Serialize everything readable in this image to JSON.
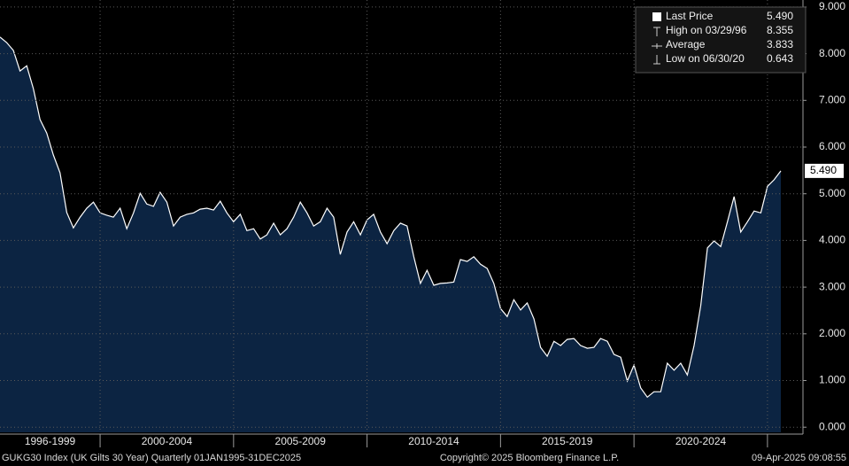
{
  "chart_data": {
    "type": "area",
    "footer_left": "GUKG30 Index (UK Gilts 30 Year)  Quarterly 01JAN1995-31DEC2025",
    "footer_center": "Copyright© 2025 Bloomberg Finance L.P.",
    "footer_right": "09-Apr-2025 09:08:55",
    "x": [
      1996.25,
      1996.5,
      1996.75,
      1997,
      1997.25,
      1997.5,
      1997.75,
      1998,
      1998.25,
      1998.5,
      1998.75,
      1999,
      1999.25,
      1999.5,
      1999.75,
      2000,
      2000.25,
      2000.5,
      2000.75,
      2001,
      2001.25,
      2001.5,
      2001.75,
      2002,
      2002.25,
      2002.5,
      2002.75,
      2003,
      2003.25,
      2003.5,
      2003.75,
      2004,
      2004.25,
      2004.5,
      2004.75,
      2005,
      2005.25,
      2005.5,
      2005.75,
      2006,
      2006.25,
      2006.5,
      2006.75,
      2007,
      2007.25,
      2007.5,
      2007.75,
      2008,
      2008.25,
      2008.5,
      2008.75,
      2009,
      2009.25,
      2009.5,
      2009.75,
      2010,
      2010.25,
      2010.5,
      2010.75,
      2011,
      2011.25,
      2011.5,
      2011.75,
      2012,
      2012.25,
      2012.5,
      2012.75,
      2013,
      2013.25,
      2013.5,
      2013.75,
      2014,
      2014.25,
      2014.5,
      2014.75,
      2015,
      2015.25,
      2015.5,
      2015.75,
      2016,
      2016.25,
      2016.5,
      2016.75,
      2017,
      2017.25,
      2017.5,
      2017.75,
      2018,
      2018.25,
      2018.5,
      2018.75,
      2019,
      2019.25,
      2019.5,
      2019.75,
      2020,
      2020.25,
      2020.5,
      2020.75,
      2021,
      2021.25,
      2021.5,
      2021.75,
      2022,
      2022.25,
      2022.5,
      2022.75,
      2023,
      2023.25,
      2023.5,
      2023.75,
      2024,
      2024.25,
      2024.5,
      2024.75,
      2025,
      2025.25,
      2025.5
    ],
    "series": [
      {
        "name": "Last Price",
        "color": "#ffffff",
        "fill": "#0c2442",
        "values": [
          8.355,
          8.24,
          8.07,
          7.63,
          7.74,
          7.25,
          6.59,
          6.3,
          5.83,
          5.45,
          4.6,
          4.27,
          4.5,
          4.69,
          4.82,
          4.59,
          4.54,
          4.5,
          4.69,
          4.25,
          4.59,
          5.01,
          4.78,
          4.73,
          5.03,
          4.82,
          4.31,
          4.5,
          4.56,
          4.59,
          4.67,
          4.69,
          4.65,
          4.84,
          4.59,
          4.4,
          4.56,
          4.21,
          4.25,
          4.03,
          4.12,
          4.37,
          4.12,
          4.25,
          4.5,
          4.82,
          4.59,
          4.31,
          4.4,
          4.69,
          4.5,
          3.7,
          4.18,
          4.4,
          4.12,
          4.44,
          4.56,
          4.18,
          3.93,
          4.21,
          4.37,
          4.31,
          3.65,
          3.08,
          3.36,
          3.04,
          3.08,
          3.09,
          3.11,
          3.59,
          3.55,
          3.65,
          3.49,
          3.4,
          3.08,
          2.54,
          2.37,
          2.73,
          2.51,
          2.66,
          2.32,
          1.71,
          1.52,
          1.84,
          1.75,
          1.88,
          1.9,
          1.75,
          1.69,
          1.71,
          1.9,
          1.84,
          1.56,
          1.5,
          0.99,
          1.33,
          0.84,
          0.643,
          0.76,
          0.76,
          1.37,
          1.22,
          1.37,
          1.12,
          1.75,
          2.6,
          3.84,
          3.99,
          3.87,
          4.4,
          4.94,
          4.18,
          4.4,
          4.63,
          4.59,
          5.16,
          5.3,
          5.49
        ]
      }
    ],
    "legend": [
      {
        "name": "Last Price",
        "value": 5.49,
        "label": "5.490"
      },
      {
        "name": "High on 03/29/96",
        "value": 8.355,
        "label": "8.355"
      },
      {
        "name": "Average",
        "value": 3.833,
        "label": "3.833"
      },
      {
        "name": "Low on 06/30/20",
        "value": 0.643,
        "label": "0.643"
      }
    ],
    "xlim": [
      1996.25,
      2026.33
    ],
    "xdividers": [
      2000,
      2005,
      2010,
      2015,
      2020,
      2025
    ],
    "xticks": [
      {
        "value": 1998.125,
        "label": "1996-1999"
      },
      {
        "value": 2002.5,
        "label": "2000-2004"
      },
      {
        "value": 2007.5,
        "label": "2005-2009"
      },
      {
        "value": 2012.5,
        "label": "2010-2014"
      },
      {
        "value": 2017.5,
        "label": "2015-2019"
      },
      {
        "value": 2022.5,
        "label": "2020-2024"
      }
    ],
    "ylim": [
      -0.11,
      9.15
    ],
    "yticks": [
      {
        "value": 0,
        "label": "0.000"
      },
      {
        "value": 1,
        "label": "1.000"
      },
      {
        "value": 2,
        "label": "2.000"
      },
      {
        "value": 3,
        "label": "3.000"
      },
      {
        "value": 4,
        "label": "4.000"
      },
      {
        "value": 5,
        "label": "5.000"
      },
      {
        "value": 6,
        "label": "6.000"
      },
      {
        "value": 7,
        "label": "7.000"
      },
      {
        "value": 8,
        "label": "8.000"
      },
      {
        "value": 9,
        "label": "9.000"
      }
    ],
    "grid": true
  }
}
